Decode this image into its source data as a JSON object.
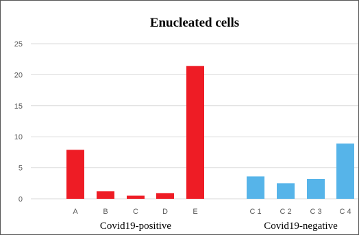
{
  "chart_data": {
    "type": "bar",
    "title": "Enucleated cells",
    "xlabel": "",
    "ylabel": "",
    "ylim": [
      0,
      25
    ],
    "yticks": [
      0,
      5,
      10,
      15,
      20,
      25
    ],
    "grid": true,
    "legend": "none",
    "categories": [
      "A",
      "B",
      "C",
      "D",
      "E",
      "C 1",
      "C 2",
      "C 3",
      "C 4"
    ],
    "values": [
      7.9,
      1.2,
      0.5,
      0.9,
      21.4,
      3.6,
      2.5,
      3.2,
      8.9
    ],
    "groups": [
      {
        "name": "Covid19-positive",
        "categories": [
          "A",
          "B",
          "C",
          "D",
          "E"
        ],
        "color": "#ee1c25"
      },
      {
        "name": "Covid19-negative",
        "categories": [
          "C 1",
          "C 2",
          "C 3",
          "C 4"
        ],
        "color": "#56b4e9"
      }
    ]
  }
}
